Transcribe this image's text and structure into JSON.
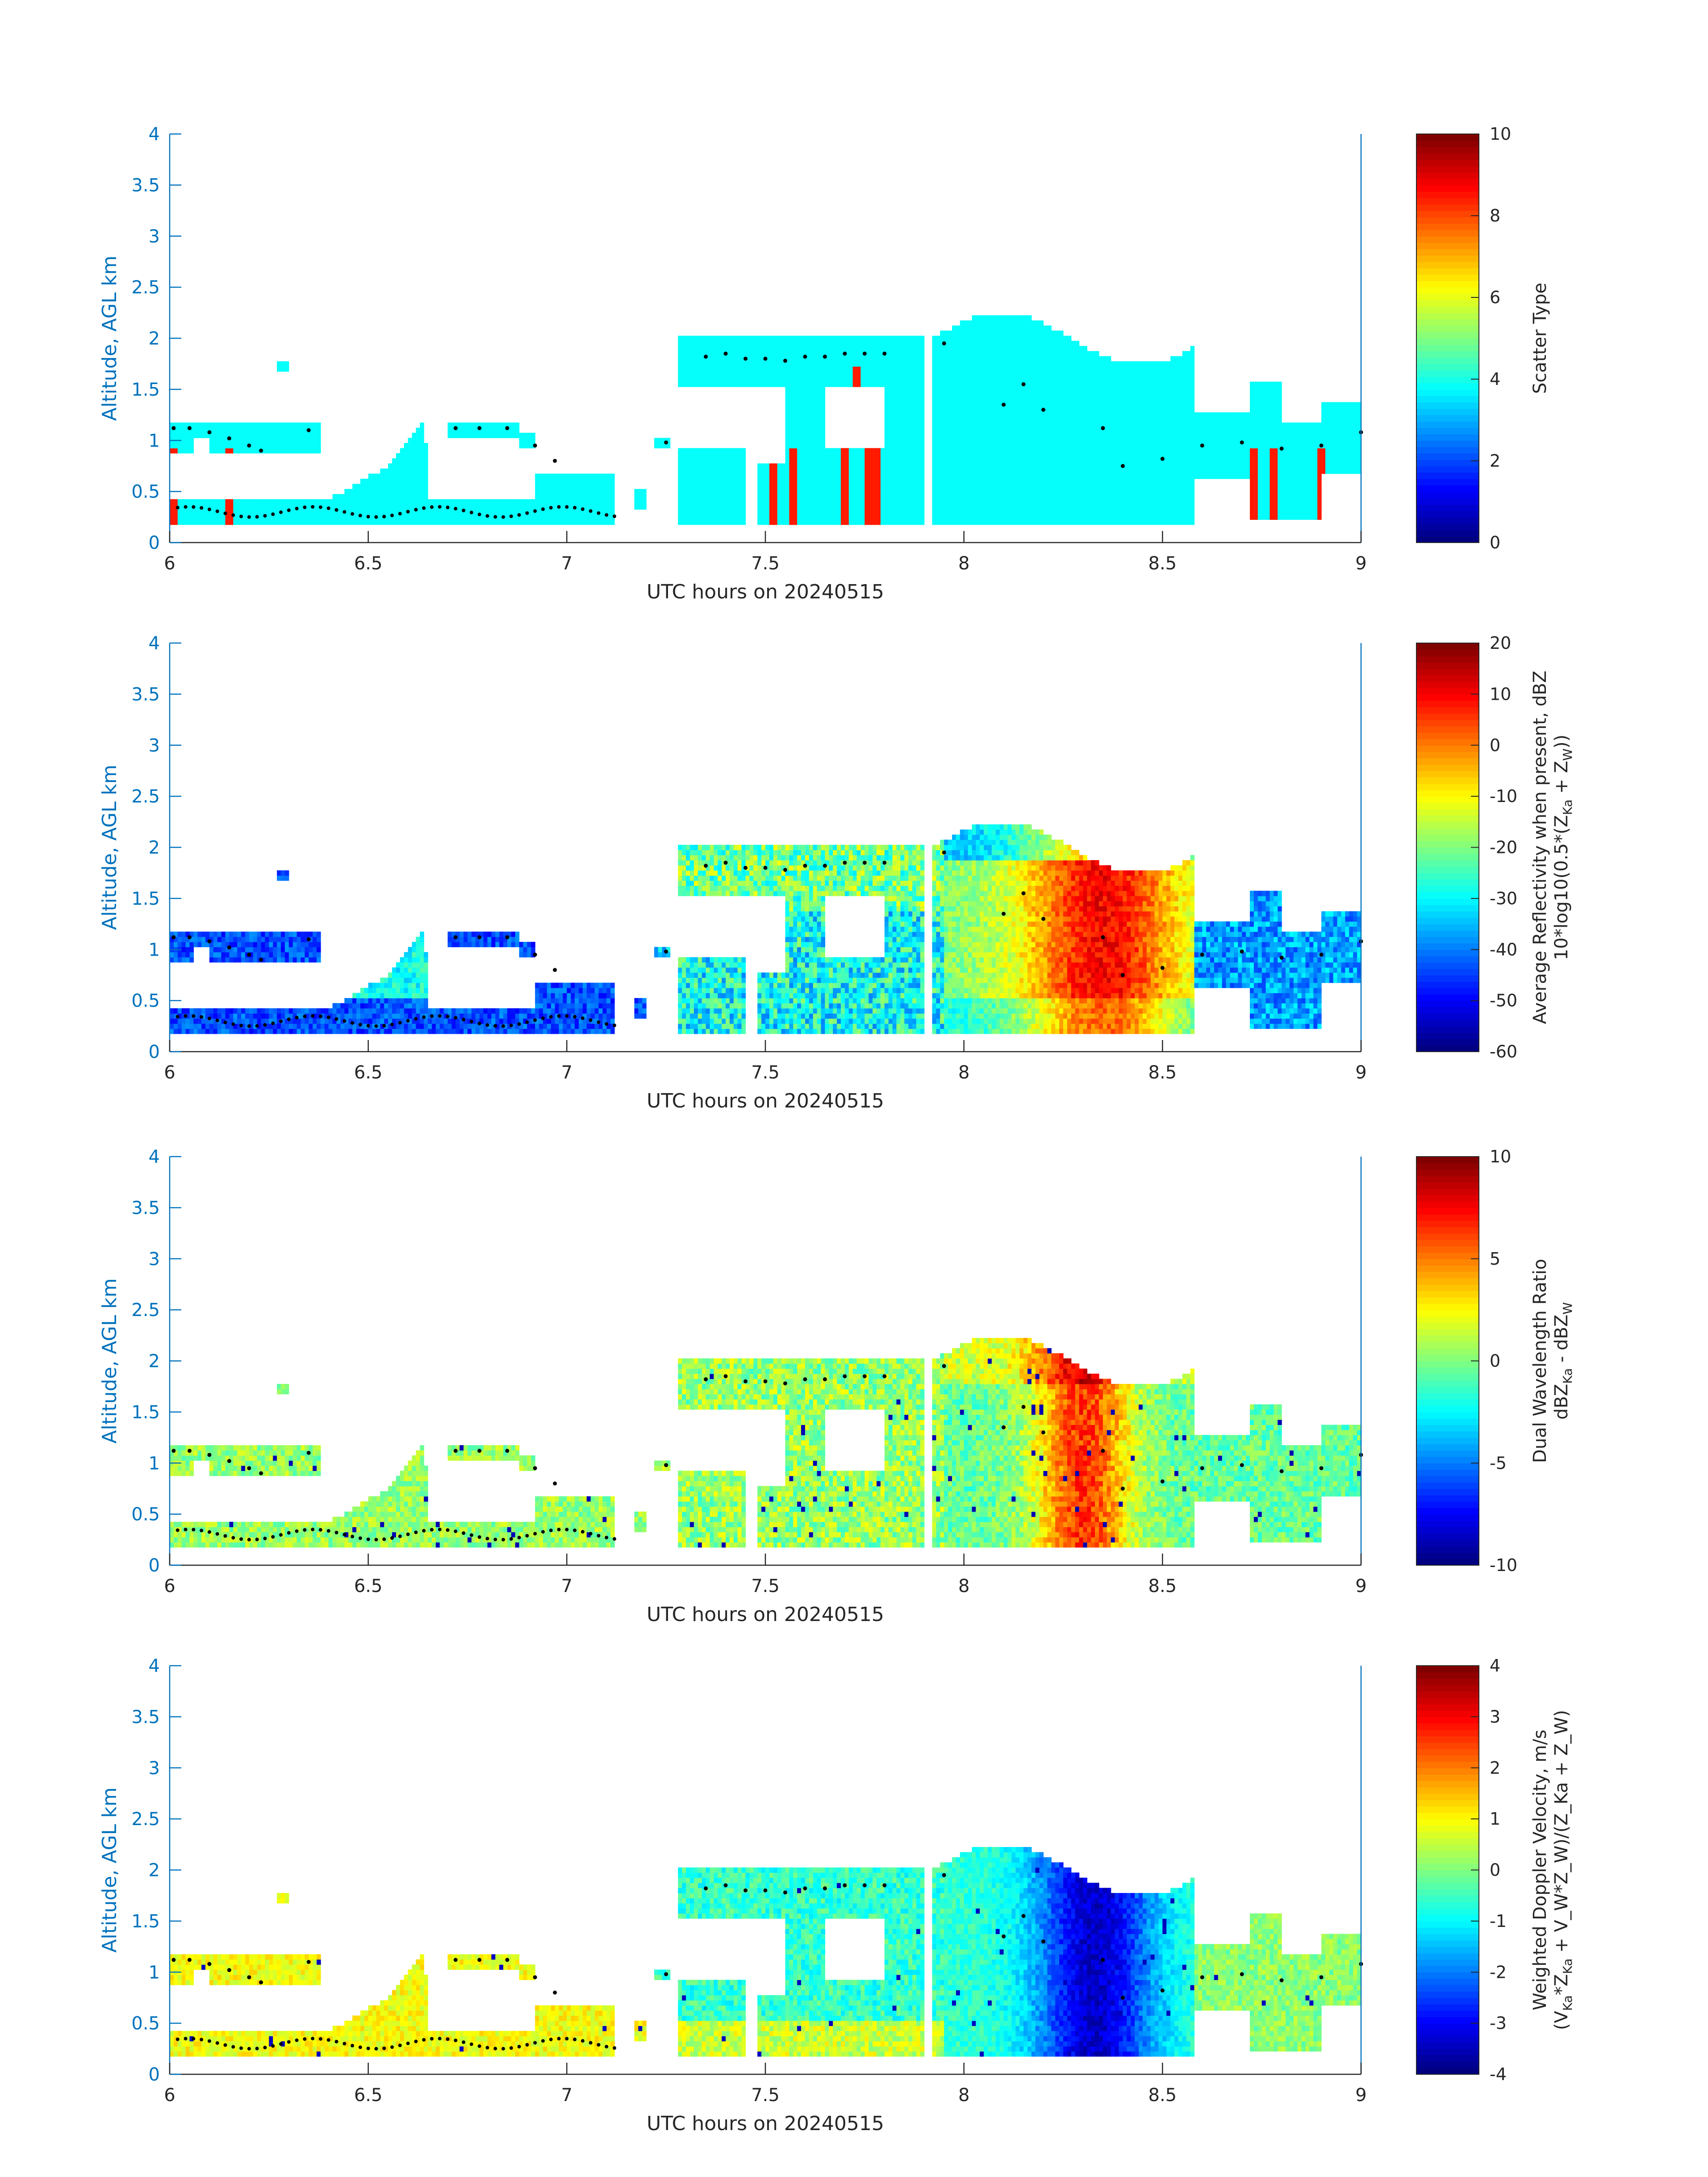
{
  "figure": {
    "xlabel": "UTC hours on 20240515",
    "ylabel": "Altitude, AGL km"
  },
  "chart_data": [
    {
      "type": "heatmap",
      "title": "",
      "xlabel": "UTC hours on 20240515",
      "ylabel": "Altitude, AGL km",
      "xlim": [
        6,
        9
      ],
      "ylim": [
        0,
        4
      ],
      "xticks": [
        "6",
        "6.5",
        "7",
        "7.5",
        "8",
        "8.5",
        "9"
      ],
      "yticks": [
        "0",
        "0.5",
        "1",
        "1.5",
        "2",
        "2.5",
        "3",
        "3.5",
        "4"
      ],
      "colorbar": {
        "label": "Scatter Type",
        "label2": "",
        "range": [
          0,
          10
        ],
        "ticks": [
          "0",
          "2",
          "4",
          "6",
          "8",
          "10"
        ]
      },
      "colormap": "jet",
      "description": "Scatter type dominated by value ~3.8 (cyan) with isolated ~8.5 (red-orange) columns",
      "dominant_value": 3.8,
      "secondary_value": 8.5
    },
    {
      "type": "heatmap",
      "title": "",
      "xlabel": "UTC hours on 20240515",
      "ylabel": "Altitude, AGL km",
      "xlim": [
        6,
        9
      ],
      "ylim": [
        0,
        4
      ],
      "xticks": [
        "6",
        "6.5",
        "7",
        "7.5",
        "8",
        "8.5",
        "9"
      ],
      "yticks": [
        "0",
        "0.5",
        "1",
        "1.5",
        "2",
        "2.5",
        "3",
        "3.5",
        "4"
      ],
      "colorbar": {
        "label": "Average Reflectivity when present, dBZ",
        "label2": "10*log10(0.5*(Z",
        "sub1": "Ka",
        "mid": " + Z",
        "sub2": "W",
        "end": "))",
        "range": [
          -60,
          20
        ],
        "ticks": [
          "-60",
          "-50",
          "-40",
          "-30",
          "-20",
          "-10",
          "0",
          "10",
          "20"
        ]
      },
      "colormap": "jet"
    },
    {
      "type": "heatmap",
      "title": "",
      "xlabel": "UTC hours on 20240515",
      "ylabel": "Altitude, AGL km",
      "xlim": [
        6,
        9
      ],
      "ylim": [
        0,
        4
      ],
      "xticks": [
        "6",
        "6.5",
        "7",
        "7.5",
        "8",
        "8.5",
        "9"
      ],
      "yticks": [
        "0",
        "0.5",
        "1",
        "1.5",
        "2",
        "2.5",
        "3",
        "3.5",
        "4"
      ],
      "colorbar": {
        "label": "Dual Wavelength Ratio",
        "label2": "dBZ",
        "sub1": "Ka",
        "mid": " - dBZ",
        "sub2": "W",
        "end": "",
        "range": [
          -10,
          10
        ],
        "ticks": [
          "-10",
          "-5",
          "0",
          "5",
          "10"
        ]
      },
      "colormap": "jet"
    },
    {
      "type": "heatmap",
      "title": "",
      "xlabel": "UTC hours on 20240515",
      "ylabel": "Altitude, AGL km",
      "xlim": [
        6,
        9
      ],
      "ylim": [
        0,
        4
      ],
      "xticks": [
        "6",
        "6.5",
        "7",
        "7.5",
        "8",
        "8.5",
        "9"
      ],
      "yticks": [
        "0",
        "0.5",
        "1",
        "1.5",
        "2",
        "2.5",
        "3",
        "3.5",
        "4"
      ],
      "colorbar": {
        "label": "Weighted Doppler Velocity, m/s",
        "label2": "(V",
        "sub1": "Ka",
        "mid": "*Z",
        "sub2": "Ka",
        "end": " + V_W*Z_W)/(Z_Ka + Z_W)",
        "range": [
          -4,
          4
        ],
        "ticks": [
          "-4",
          "-3",
          "-2",
          "-1",
          "0",
          "1",
          "2",
          "3",
          "4"
        ]
      },
      "colormap": "jet"
    }
  ],
  "cloud_top_dots": {
    "series": [
      {
        "x": 6.01,
        "y": 1.12
      },
      {
        "x": 6.05,
        "y": 1.12
      },
      {
        "x": 6.1,
        "y": 1.08
      },
      {
        "x": 6.15,
        "y": 1.02
      },
      {
        "x": 6.2,
        "y": 0.95
      },
      {
        "x": 6.23,
        "y": 0.9
      },
      {
        "x": 6.35,
        "y": 1.1
      },
      {
        "x": 6.72,
        "y": 1.12
      },
      {
        "x": 6.78,
        "y": 1.12
      },
      {
        "x": 6.85,
        "y": 1.12
      },
      {
        "x": 6.92,
        "y": 0.95
      },
      {
        "x": 6.97,
        "y": 0.8
      },
      {
        "x": 7.25,
        "y": 0.98
      },
      {
        "x": 7.35,
        "y": 1.82
      },
      {
        "x": 7.4,
        "y": 1.85
      },
      {
        "x": 7.45,
        "y": 1.8
      },
      {
        "x": 7.5,
        "y": 1.8
      },
      {
        "x": 7.55,
        "y": 1.78
      },
      {
        "x": 7.6,
        "y": 1.82
      },
      {
        "x": 7.65,
        "y": 1.82
      },
      {
        "x": 7.7,
        "y": 1.85
      },
      {
        "x": 7.75,
        "y": 1.85
      },
      {
        "x": 7.8,
        "y": 1.85
      },
      {
        "x": 7.95,
        "y": 1.95
      },
      {
        "x": 8.1,
        "y": 1.35
      },
      {
        "x": 8.15,
        "y": 1.55
      },
      {
        "x": 8.2,
        "y": 1.3
      },
      {
        "x": 8.35,
        "y": 1.12
      },
      {
        "x": 8.4,
        "y": 0.75
      },
      {
        "x": 8.5,
        "y": 0.82
      },
      {
        "x": 8.6,
        "y": 0.95
      },
      {
        "x": 8.7,
        "y": 0.98
      },
      {
        "x": 8.8,
        "y": 0.92
      },
      {
        "x": 8.9,
        "y": 0.95
      },
      {
        "x": 9.0,
        "y": 1.08
      }
    ]
  }
}
